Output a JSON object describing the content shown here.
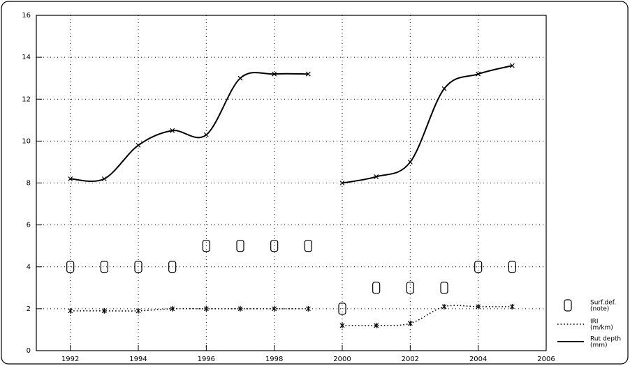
{
  "chart_data": {
    "type": "line",
    "x": [
      [
        1992,
        1993,
        1994,
        1995,
        1996,
        1997,
        1998,
        1999
      ],
      [
        2000,
        2001,
        2002,
        2003,
        2004,
        2005
      ]
    ],
    "series": [
      {
        "name": [
          "Surf.def.",
          "(note)"
        ],
        "style": "box",
        "color": "#000",
        "values": [
          [
            4,
            4,
            4,
            4,
            5,
            5,
            5,
            5
          ],
          [
            2,
            3,
            3,
            3,
            4,
            4
          ]
        ]
      },
      {
        "name": [
          "IRI",
          "(m/km)"
        ],
        "style": "dotted",
        "color": "#000",
        "values": [
          [
            1.9,
            1.9,
            1.9,
            2.0,
            2.0,
            2.0,
            2.0,
            2.0
          ],
          [
            1.2,
            1.2,
            1.3,
            2.1,
            2.1,
            2.1
          ]
        ]
      },
      {
        "name": [
          "Rut depth",
          "(mm)"
        ],
        "style": "solid",
        "color": "#000",
        "values": [
          [
            8.2,
            8.2,
            9.8,
            10.5,
            10.3,
            13.0,
            13.2,
            13.2
          ],
          [
            8.0,
            8.3,
            9.0,
            12.5,
            13.2,
            13.6
          ]
        ]
      }
    ],
    "xlim": [
      1991,
      2006
    ],
    "xticks": [
      1992,
      1994,
      1996,
      1998,
      2000,
      2002,
      2004,
      2006
    ],
    "ylim": [
      0,
      16
    ],
    "yticks": [
      0,
      2,
      4,
      6,
      8,
      10,
      12,
      14,
      16
    ],
    "grid": true
  }
}
